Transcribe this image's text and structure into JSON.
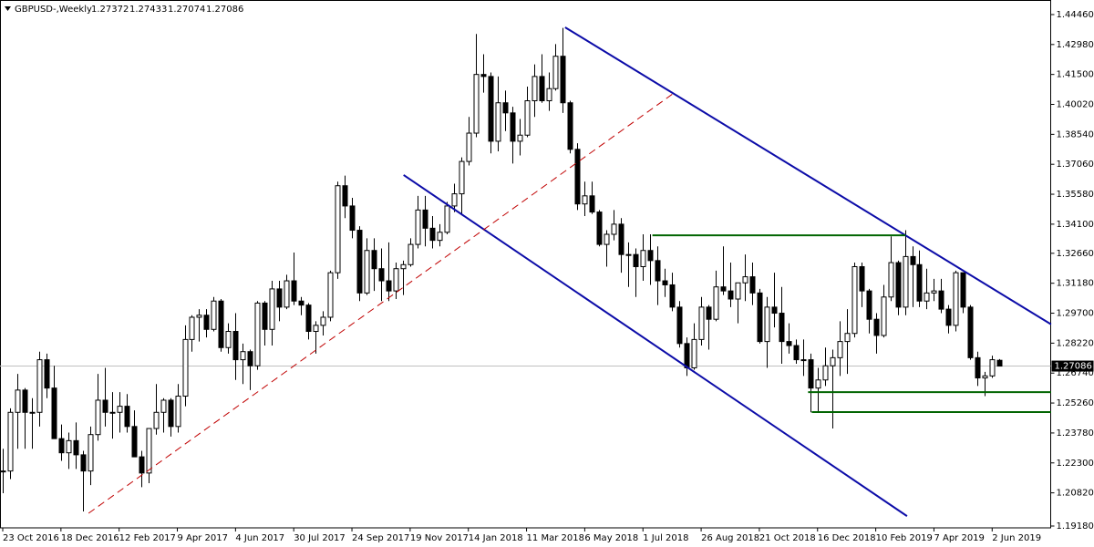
{
  "chart_data": {
    "type": "candlestick",
    "title": "GBPUSD-,Weekly",
    "categories": [
      "23 Oct 2016",
      null,
      null,
      null,
      null,
      null,
      null,
      null,
      "18 Dec 2016",
      null,
      null,
      null,
      null,
      null,
      null,
      null,
      "12 Feb 2017",
      null,
      null,
      null,
      null,
      null,
      null,
      null,
      "9 Apr 2017",
      null,
      null,
      null,
      null,
      null,
      null,
      null,
      "4 Jun 2017",
      null,
      null,
      null,
      null,
      null,
      null,
      null,
      "30 Jul 2017",
      null,
      null,
      null,
      null,
      null,
      null,
      null,
      "24 Sep 2017",
      null,
      null,
      null,
      null,
      null,
      null,
      null,
      "19 Nov 2017",
      null,
      null,
      null,
      null,
      null,
      null,
      null,
      "14 Jan 2018",
      null,
      null,
      null,
      null,
      null,
      null,
      null,
      "11 Mar 2018",
      null,
      null,
      null,
      null,
      null,
      null,
      null,
      "6 May 2018",
      null,
      null,
      null,
      null,
      null,
      null,
      null,
      "1 Jul 2018",
      null,
      null,
      null,
      null,
      null,
      null,
      null,
      "26 Aug 2018",
      null,
      null,
      null,
      null,
      null,
      null,
      null,
      "21 Oct 2018",
      null,
      null,
      null,
      null,
      null,
      null,
      null,
      "16 Dec 2018",
      null,
      null,
      null,
      null,
      null,
      null,
      null,
      "10 Feb 2019",
      null,
      null,
      null,
      null,
      null,
      null,
      null,
      "7 Apr 2019",
      null,
      null,
      null,
      null,
      null,
      null,
      null,
      "2 Jun 2019",
      null
    ],
    "open": [
      1.219,
      1.219,
      1.248,
      1.259,
      1.248,
      1.248,
      1.274,
      1.26,
      1.235,
      1.228,
      1.234,
      1.227,
      1.219,
      1.237,
      1.254,
      1.248,
      1.248,
      1.251,
      1.241,
      1.226,
      1.218,
      1.24,
      1.248,
      1.254,
      1.241,
      1.256,
      1.284,
      1.295,
      1.296,
      1.289,
      1.303,
      1.28,
      1.288,
      1.274,
      1.278,
      1.271,
      1.302,
      1.289,
      1.309,
      1.3,
      1.313,
      1.303,
      1.301,
      1.288,
      1.291,
      1.295,
      1.317,
      1.36,
      1.35,
      1.338,
      1.307,
      1.328,
      1.319,
      1.313,
      1.308,
      1.319,
      1.321,
      1.331,
      1.348,
      1.339,
      1.333,
      1.337,
      1.35,
      1.356,
      1.372,
      1.386,
      1.415,
      1.414,
      1.382,
      1.401,
      1.396,
      1.382,
      1.385,
      1.402,
      1.414,
      1.402,
      1.408,
      1.424,
      1.401,
      1.378,
      1.351,
      1.355,
      1.347,
      1.331,
      1.336,
      1.341,
      1.326,
      1.326,
      1.32,
      1.328,
      1.323,
      1.313,
      1.311,
      1.3,
      1.282,
      1.27,
      1.284,
      1.3,
      1.294,
      1.31,
      1.308,
      1.304,
      1.312,
      1.315,
      1.307,
      1.283,
      1.3,
      1.297,
      1.283,
      1.281,
      1.274,
      1.274,
      1.26,
      1.264,
      1.271,
      1.275,
      1.283,
      1.287,
      1.32,
      1.308,
      1.294,
      1.286,
      1.305,
      1.322,
      1.3,
      1.325,
      1.321,
      1.303,
      1.307,
      1.308,
      1.299,
      1.291,
      1.317,
      1.3,
      1.275,
      1.265,
      1.266,
      1.27372
    ],
    "high": [
      1.23,
      1.25,
      1.267,
      1.26,
      1.255,
      1.278,
      1.277,
      1.271,
      1.242,
      1.238,
      1.243,
      1.229,
      1.241,
      1.267,
      1.27,
      1.258,
      1.258,
      1.257,
      1.249,
      1.229,
      1.24,
      1.262,
      1.255,
      1.255,
      1.262,
      1.291,
      1.296,
      1.299,
      1.299,
      1.305,
      1.304,
      1.292,
      1.297,
      1.282,
      1.279,
      1.303,
      1.303,
      1.313,
      1.313,
      1.316,
      1.327,
      1.305,
      1.302,
      1.293,
      1.298,
      1.318,
      1.362,
      1.365,
      1.354,
      1.34,
      1.334,
      1.334,
      1.329,
      1.332,
      1.322,
      1.323,
      1.334,
      1.355,
      1.355,
      1.345,
      1.341,
      1.352,
      1.361,
      1.374,
      1.394,
      1.435,
      1.425,
      1.416,
      1.414,
      1.407,
      1.399,
      1.393,
      1.409,
      1.42,
      1.425,
      1.416,
      1.43,
      1.438,
      1.402,
      1.381,
      1.362,
      1.362,
      1.348,
      1.338,
      1.348,
      1.344,
      1.332,
      1.329,
      1.336,
      1.336,
      1.33,
      1.319,
      1.317,
      1.303,
      1.285,
      1.292,
      1.305,
      1.301,
      1.318,
      1.33,
      1.322,
      1.312,
      1.326,
      1.322,
      1.309,
      1.305,
      1.317,
      1.31,
      1.292,
      1.284,
      1.284,
      1.277,
      1.27,
      1.28,
      1.279,
      1.293,
      1.299,
      1.322,
      1.322,
      1.309,
      1.297,
      1.311,
      1.335,
      1.323,
      1.338,
      1.33,
      1.328,
      1.319,
      1.314,
      1.314,
      1.301,
      1.318,
      1.317,
      1.301,
      1.278,
      1.268,
      1.276,
      1.27433
    ],
    "low": [
      1.208,
      1.215,
      1.23,
      1.23,
      1.23,
      1.241,
      1.255,
      1.235,
      1.224,
      1.22,
      1.22,
      1.199,
      1.212,
      1.234,
      1.241,
      1.235,
      1.238,
      1.238,
      1.226,
      1.211,
      1.213,
      1.237,
      1.238,
      1.236,
      1.238,
      1.251,
      1.278,
      1.283,
      1.285,
      1.288,
      1.278,
      1.277,
      1.264,
      1.262,
      1.259,
      1.269,
      1.281,
      1.281,
      1.293,
      1.299,
      1.301,
      1.296,
      1.284,
      1.277,
      1.286,
      1.293,
      1.314,
      1.344,
      1.334,
      1.303,
      1.306,
      1.308,
      1.303,
      1.303,
      1.304,
      1.306,
      1.32,
      1.329,
      1.33,
      1.329,
      1.33,
      1.336,
      1.347,
      1.346,
      1.37,
      1.384,
      1.406,
      1.376,
      1.377,
      1.387,
      1.371,
      1.375,
      1.384,
      1.394,
      1.401,
      1.397,
      1.407,
      1.396,
      1.376,
      1.348,
      1.345,
      1.346,
      1.33,
      1.32,
      1.333,
      1.317,
      1.31,
      1.305,
      1.313,
      1.311,
      1.301,
      1.305,
      1.298,
      1.28,
      1.266,
      1.269,
      1.281,
      1.279,
      1.293,
      1.306,
      1.3,
      1.292,
      1.303,
      1.301,
      1.282,
      1.27,
      1.29,
      1.272,
      1.277,
      1.272,
      1.266,
      1.248,
      1.248,
      1.261,
      1.24,
      1.266,
      1.267,
      1.285,
      1.3,
      1.287,
      1.277,
      1.285,
      1.303,
      1.296,
      1.296,
      1.3,
      1.3,
      1.299,
      1.303,
      1.297,
      1.287,
      1.288,
      1.297,
      1.274,
      1.261,
      1.256,
      1.265,
      1.27074
    ],
    "close": [
      1.219,
      1.248,
      1.259,
      1.248,
      1.248,
      1.274,
      1.26,
      1.235,
      1.228,
      1.234,
      1.227,
      1.219,
      1.237,
      1.254,
      1.248,
      1.248,
      1.251,
      1.241,
      1.226,
      1.218,
      1.24,
      1.248,
      1.254,
      1.241,
      1.256,
      1.284,
      1.295,
      1.296,
      1.289,
      1.303,
      1.28,
      1.288,
      1.274,
      1.278,
      1.271,
      1.302,
      1.289,
      1.309,
      1.3,
      1.313,
      1.303,
      1.301,
      1.288,
      1.291,
      1.295,
      1.317,
      1.36,
      1.35,
      1.338,
      1.307,
      1.328,
      1.319,
      1.313,
      1.308,
      1.319,
      1.321,
      1.331,
      1.348,
      1.339,
      1.333,
      1.337,
      1.35,
      1.356,
      1.372,
      1.386,
      1.415,
      1.414,
      1.382,
      1.401,
      1.396,
      1.382,
      1.385,
      1.402,
      1.414,
      1.402,
      1.408,
      1.424,
      1.401,
      1.378,
      1.351,
      1.355,
      1.347,
      1.331,
      1.336,
      1.341,
      1.326,
      1.326,
      1.32,
      1.328,
      1.323,
      1.313,
      1.311,
      1.3,
      1.282,
      1.27,
      1.284,
      1.3,
      1.294,
      1.31,
      1.308,
      1.304,
      1.312,
      1.315,
      1.307,
      1.283,
      1.3,
      1.297,
      1.283,
      1.281,
      1.274,
      1.274,
      1.26,
      1.264,
      1.271,
      1.275,
      1.283,
      1.287,
      1.32,
      1.308,
      1.294,
      1.286,
      1.305,
      1.322,
      1.3,
      1.325,
      1.321,
      1.303,
      1.307,
      1.308,
      1.299,
      1.291,
      1.317,
      1.3,
      1.275,
      1.265,
      1.266,
      1.274,
      1.27086
    ],
    "up_color": "#ffffff",
    "down_color": "#000000",
    "ylim": [
      1.1909,
      1.4509
    ],
    "yticks": [
      {
        "value": 1.4446,
        "label": "1.44460"
      },
      {
        "value": 1.4298,
        "label": "1.42980"
      },
      {
        "value": 1.415,
        "label": "1.41500"
      },
      {
        "value": 1.4002,
        "label": "1.40020"
      },
      {
        "value": 1.3854,
        "label": "1.38540"
      },
      {
        "value": 1.3706,
        "label": "1.37060"
      },
      {
        "value": 1.3558,
        "label": "1.35580"
      },
      {
        "value": 1.341,
        "label": "1.34100"
      },
      {
        "value": 1.3266,
        "label": "1.32660"
      },
      {
        "value": 1.3118,
        "label": "1.31180"
      },
      {
        "value": 1.297,
        "label": "1.29700"
      },
      {
        "value": 1.2822,
        "label": "1.28220"
      },
      {
        "value": 1.2674,
        "label": "1.26740"
      },
      {
        "value": 1.2526,
        "label": "1.25260"
      },
      {
        "value": 1.2378,
        "label": "1.23780"
      },
      {
        "value": 1.223,
        "label": "1.22300"
      },
      {
        "value": 1.2082,
        "label": "1.20820"
      },
      {
        "value": 1.1918,
        "label": "1.19180"
      }
    ],
    "drawings": [
      {
        "color": "#0c0ca8",
        "dash": false,
        "points": [
          [
            77.3,
            1.4383
          ],
          [
            144.1,
            1.2915
          ]
        ]
      },
      {
        "color": "#0c0ca8",
        "dash": false,
        "points": [
          [
            55.1,
            1.3653
          ],
          [
            124.3,
            1.1967
          ]
        ]
      },
      {
        "color": "#c00000",
        "dash": true,
        "points": [
          [
            11.8,
            1.1981
          ],
          [
            92.1,
            1.4054
          ]
        ]
      },
      {
        "color": "#006400",
        "dash": false,
        "points": [
          [
            89.3,
            1.3355
          ],
          [
            124.1,
            1.3355
          ]
        ]
      },
      {
        "color": "#006400",
        "dash": false,
        "points": [
          [
            110.7,
            1.258
          ],
          [
            144.1,
            1.258
          ]
        ]
      },
      {
        "color": "#006400",
        "dash": false,
        "points": [
          [
            111.2,
            1.2481
          ],
          [
            144.1,
            1.2481
          ]
        ]
      }
    ]
  }
}
